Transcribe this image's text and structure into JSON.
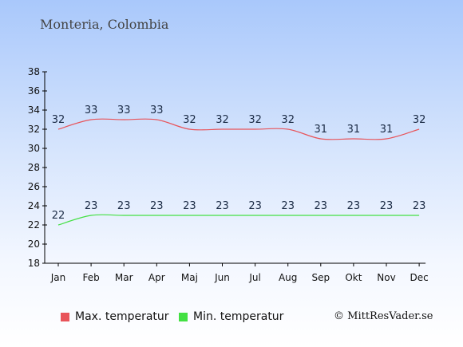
{
  "title": "Monteria, Colombia",
  "chart_data": {
    "type": "line",
    "categories": [
      "Jan",
      "Feb",
      "Mar",
      "Apr",
      "Maj",
      "Jun",
      "Jul",
      "Aug",
      "Sep",
      "Okt",
      "Nov",
      "Dec"
    ],
    "series": [
      {
        "name": "Max. temperatur",
        "color": "#e8545a",
        "values": [
          32,
          33,
          33,
          33,
          32,
          32,
          32,
          32,
          31,
          31,
          31,
          32
        ]
      },
      {
        "name": "Min. temperatur",
        "color": "#43e043",
        "values": [
          22,
          23,
          23,
          23,
          23,
          23,
          23,
          23,
          23,
          23,
          23,
          23
        ]
      }
    ],
    "ylim": [
      18,
      38
    ],
    "yticks": [
      18,
      20,
      22,
      24,
      26,
      28,
      30,
      32,
      34,
      36,
      38
    ],
    "grid": false,
    "legend": "bottom-left"
  },
  "copyright": "© MittResVader.se"
}
